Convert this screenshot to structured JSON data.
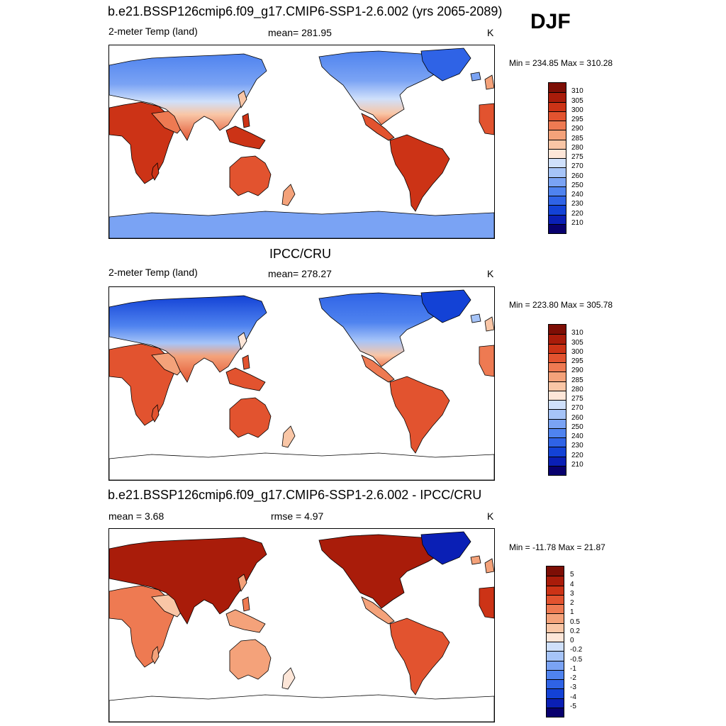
{
  "season": "DJF",
  "palettes": {
    "temp": [
      "#08006e",
      "#0a1fb5",
      "#1342d6",
      "#2f63e6",
      "#4f83ef",
      "#7aa3f4",
      "#a6c4f8",
      "#cfe0fb",
      "#fde6d8",
      "#f9c6a6",
      "#f4a27a",
      "#ee7a52",
      "#e2532f",
      "#cc3316",
      "#a91c0a",
      "#7d0e05"
    ],
    "diff": [
      "#08006e",
      "#0a1fb5",
      "#1342d6",
      "#2f63e6",
      "#4f83ef",
      "#7aa3f4",
      "#a6c4f8",
      "#cfe0fb",
      "#fde6d8",
      "#f9c6a6",
      "#f4a27a",
      "#ee7a52",
      "#e2532f",
      "#cc3316",
      "#a91c0a",
      "#7d0e05"
    ]
  },
  "panels": [
    {
      "id": "model",
      "title": "b.e21.BSSP126cmip6.f09_g17.CMIP6-SSP1-2.6.002 (yrs 2065-2089)",
      "left_label": "2-meter Temp (land)",
      "center_label": "mean= 281.95",
      "right_label": "K",
      "minmax": "Min = 234.85 Max = 310.28",
      "colorbar_labels": [
        "310",
        "305",
        "300",
        "295",
        "290",
        "285",
        "280",
        "275",
        "270",
        "260",
        "250",
        "240",
        "230",
        "220",
        "210"
      ],
      "antarctica_filled": true
    },
    {
      "id": "obs",
      "title": "IPCC/CRU",
      "left_label": "2-meter Temp (land)",
      "center_label": "mean= 278.27",
      "right_label": "K",
      "minmax": "Min = 223.80 Max = 305.78",
      "colorbar_labels": [
        "310",
        "305",
        "300",
        "295",
        "290",
        "285",
        "280",
        "275",
        "270",
        "260",
        "250",
        "240",
        "230",
        "220",
        "210"
      ],
      "antarctica_filled": false
    },
    {
      "id": "diff",
      "title": "b.e21.BSSP126cmip6.f09_g17.CMIP6-SSP1-2.6.002 - IPCC/CRU",
      "left_label": "mean =   3.68",
      "center_label": "rmse =   4.97",
      "right_label": "K",
      "minmax": "Min = -11.78 Max =  21.87",
      "colorbar_labels": [
        "5",
        "4",
        "3",
        "2",
        "1",
        "0.5",
        "0.2",
        "0",
        "-0.2",
        "-0.5",
        "-1",
        "-2",
        "-3",
        "-4",
        "-5"
      ],
      "antarctica_filled": false
    }
  ]
}
